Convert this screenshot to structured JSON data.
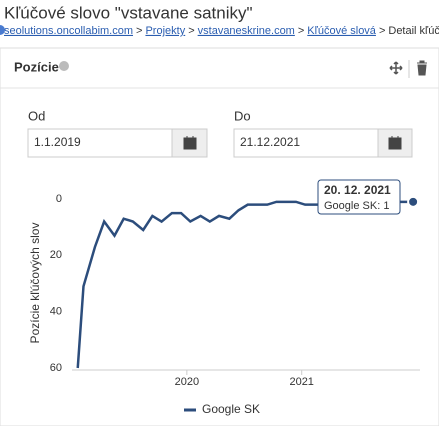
{
  "header": {
    "title": "Kľúčové slovo \"vstavane satniky\"",
    "breadcrumb": {
      "items": [
        "seolutions.oncollabim.com",
        "Projekty",
        "vstavaneskrine.com",
        "Kľúčové slová",
        "Detail kľúčového slo"
      ],
      "separator": ">"
    }
  },
  "panel": {
    "title": "Pozície",
    "from": {
      "label": "Od",
      "value": "1.1.2019"
    },
    "to": {
      "label": "Do",
      "value": "21.12.2021"
    }
  },
  "chart_data": {
    "type": "line",
    "ylabel": "Pozície kľúčových slov",
    "ylim": [
      0,
      60
    ],
    "y_reversed": true,
    "yticks": [
      0,
      20,
      40,
      60
    ],
    "xlim": [
      2019,
      2022.03
    ],
    "xticks": [
      2020,
      2021
    ],
    "x": [
      2019.05,
      2019.1,
      2019.2,
      2019.28,
      2019.37,
      2019.45,
      2019.53,
      2019.62,
      2019.7,
      2019.78,
      2019.87,
      2019.95,
      2020.03,
      2020.12,
      2020.2,
      2020.28,
      2020.37,
      2020.45,
      2020.53,
      2020.62,
      2020.7,
      2020.78,
      2020.87,
      2020.95,
      2021.03,
      2021.12,
      2021.2,
      2021.28,
      2021.37,
      2021.45,
      2021.53,
      2021.62,
      2021.7,
      2021.78,
      2021.87,
      2021.97
    ],
    "series": [
      {
        "name": "Google SK",
        "color": "#2c4d7c",
        "values": [
          60,
          31,
          17,
          8,
          13,
          7,
          8,
          11,
          6,
          8,
          5,
          5,
          8,
          6,
          8,
          6,
          7,
          4,
          2,
          2,
          2,
          1,
          1,
          1,
          2,
          2,
          2,
          1,
          1,
          1,
          1,
          1,
          1,
          1,
          1,
          1
        ]
      }
    ],
    "tooltip": {
      "title": "20. 12. 2021",
      "text": "Google SK: 1"
    }
  }
}
